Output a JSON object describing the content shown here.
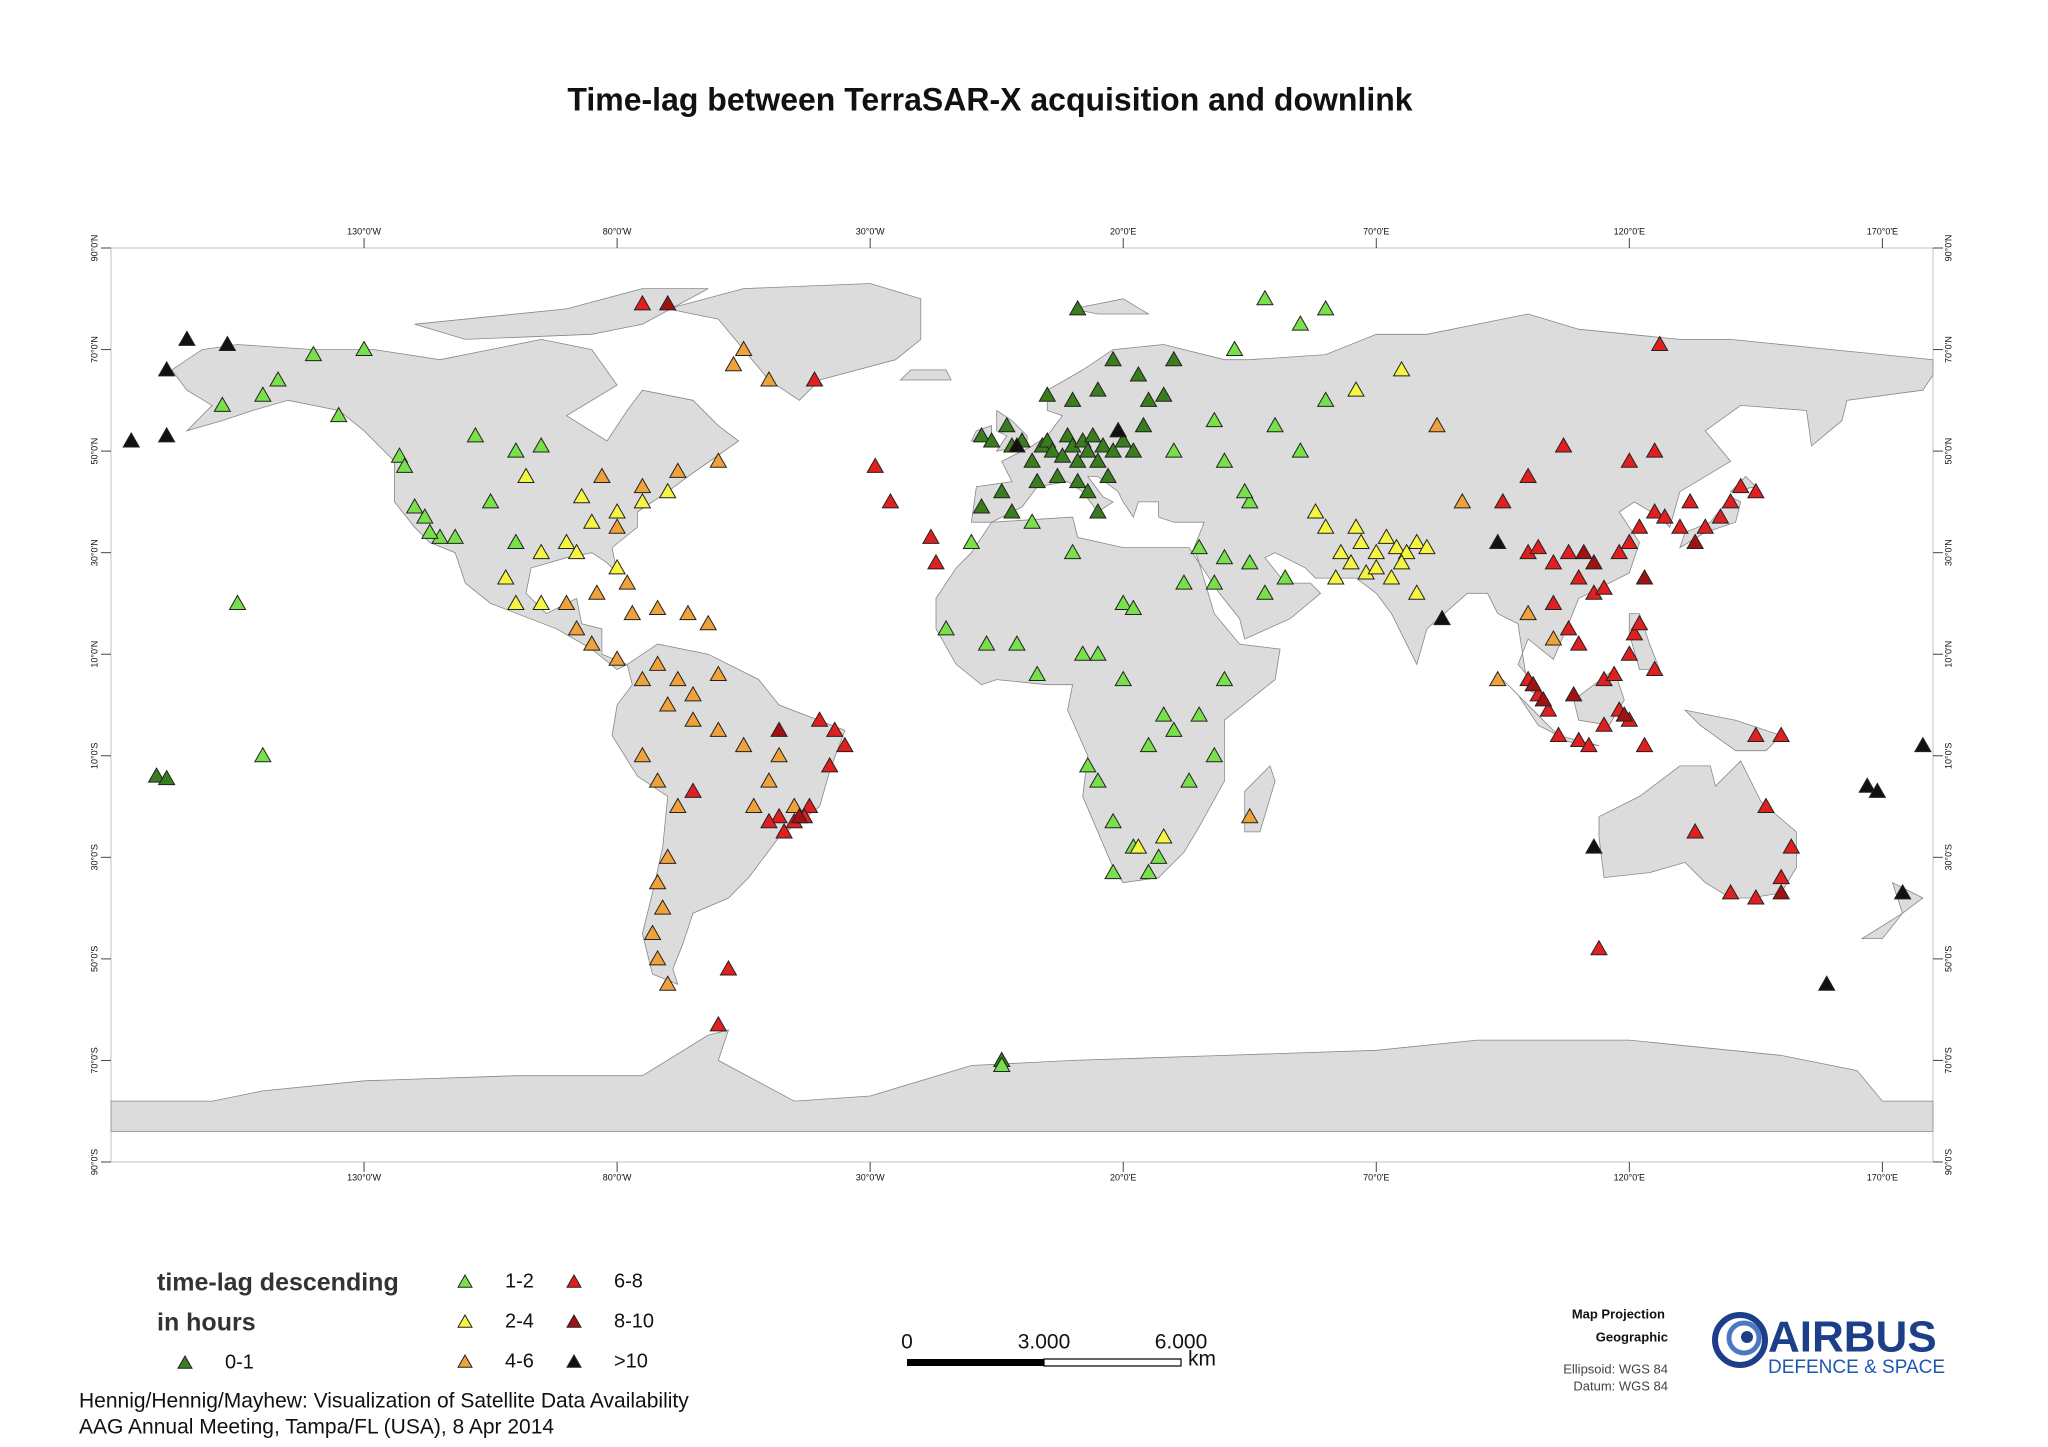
{
  "chart_data": {
    "type": "scatter",
    "title": "Time-lag between TerraSAR-X acquisition and downlink",
    "legend_title": [
      "time-lag descending",
      "in hours"
    ],
    "xlim": [
      -180,
      180
    ],
    "ylim": [
      -90,
      90
    ],
    "xticks": [
      {
        "value": -130,
        "label": "130°0'W"
      },
      {
        "value": -80,
        "label": "80°0'W"
      },
      {
        "value": -30,
        "label": "30°0'W"
      },
      {
        "value": 20,
        "label": "20°0'E"
      },
      {
        "value": 70,
        "label": "70°0'E"
      },
      {
        "value": 120,
        "label": "120°0'E"
      },
      {
        "value": 170,
        "label": "170°0'E"
      }
    ],
    "yticks": [
      {
        "value": 90,
        "label": "90°0'N"
      },
      {
        "value": 70,
        "label": "70°0'N"
      },
      {
        "value": 50,
        "label": "50°0'N"
      },
      {
        "value": 30,
        "label": "30°0'N"
      },
      {
        "value": 10,
        "label": "10°0'N"
      },
      {
        "value": -10,
        "label": "10°0'S"
      },
      {
        "value": -30,
        "label": "30°0'S"
      },
      {
        "value": -50,
        "label": "50°0'S"
      },
      {
        "value": -70,
        "label": "70°0'S"
      },
      {
        "value": -90,
        "label": "90°0'S"
      }
    ],
    "series": [
      {
        "name": "0-1",
        "color": "#3a7d1e",
        "x": [
          -8,
          -6,
          -3,
          -2,
          0,
          2,
          4,
          5,
          6,
          8,
          9,
          10,
          11,
          12,
          13,
          14,
          15,
          16,
          18,
          19,
          20,
          22,
          24,
          -4,
          -8,
          -2,
          3,
          7,
          11,
          13,
          15,
          10,
          5,
          15,
          25,
          18,
          23,
          28,
          11,
          30,
          17,
          -171,
          -169,
          -4
        ],
        "values": [
          53,
          52,
          55,
          51,
          52,
          48,
          51,
          52,
          50,
          49,
          53,
          51,
          48,
          52,
          50,
          53,
          48,
          51,
          50,
          54,
          52,
          50,
          55,
          42,
          39,
          38,
          44,
          45,
          44,
          42,
          38,
          60,
          61,
          62,
          60,
          68,
          65,
          61,
          78,
          68,
          45,
          -14,
          -14.5,
          -70
        ]
      },
      {
        "name": "1-2",
        "color": "#77e04a",
        "x": [
          -150,
          -147,
          -158,
          -135,
          -123,
          -122,
          -118,
          -120,
          -115,
          -117,
          -112,
          -105,
          -100,
          -95,
          -108,
          -130,
          -140,
          -155,
          -150,
          -100,
          -10,
          -15,
          -7,
          -1,
          3,
          10,
          2,
          20,
          22,
          15,
          20,
          32,
          35,
          38,
          40,
          45,
          48,
          52,
          45,
          44,
          40,
          38,
          30,
          50,
          55,
          60,
          42,
          55,
          48,
          60,
          28,
          25,
          30,
          35,
          38,
          18,
          22,
          27,
          15,
          13,
          18,
          25,
          40,
          33,
          12,
          -4
        ],
        "values": [
          61,
          64,
          59,
          57,
          49,
          47,
          37,
          39,
          33,
          34,
          33,
          40,
          50,
          51,
          53,
          70,
          69,
          20,
          -10,
          32,
          32,
          15,
          12,
          12,
          6,
          30,
          36,
          20,
          19,
          10,
          5,
          24,
          31,
          24,
          29,
          28,
          22,
          25,
          40,
          42,
          48,
          56,
          50,
          55,
          50,
          60,
          70,
          75,
          80,
          78,
          -2,
          -8,
          -5,
          -2,
          -10,
          -23,
          -28,
          -30,
          -15,
          -12,
          -33,
          -33,
          5,
          -15,
          10,
          -71
        ]
      },
      {
        "name": "2-4",
        "color": "#f5f542",
        "x": [
          63,
          65,
          67,
          70,
          72,
          74,
          76,
          68,
          70,
          75,
          78,
          73,
          80,
          60,
          66,
          62,
          78,
          66,
          75,
          58,
          -80,
          -85,
          -90,
          -87,
          -95,
          -80,
          -75,
          -70,
          -100,
          -102,
          -95,
          23,
          28,
          -98,
          -88
        ],
        "values": [
          30,
          28,
          32,
          30,
          33,
          31,
          30,
          26,
          27,
          28,
          32,
          25,
          31,
          35,
          35,
          25,
          22,
          62,
          66,
          38,
          38,
          36,
          32,
          41,
          30,
          27,
          40,
          42,
          20,
          25,
          20,
          -28,
          -26,
          45,
          30
        ]
      },
      {
        "name": "4-6",
        "color": "#f0a23a",
        "x": [
          -75,
          -72,
          -68,
          -65,
          -60,
          -70,
          -65,
          -60,
          -55,
          -75,
          -72,
          -68,
          -70,
          -72,
          -71,
          -73,
          -72,
          -70,
          -48,
          -50,
          -45,
          -53,
          -88,
          -85,
          -80,
          -77,
          -72,
          -66,
          -62,
          -84,
          -78,
          -90,
          -80,
          -75,
          -68,
          -60,
          -57,
          -50,
          -55,
          82,
          87,
          100,
          105,
          94,
          45,
          -83
        ],
        "values": [
          5,
          8,
          5,
          2,
          6,
          0,
          -3,
          -5,
          -8,
          -10,
          -15,
          -20,
          -30,
          -35,
          -40,
          -45,
          -50,
          -55,
          -10,
          -15,
          -20,
          -20,
          15,
          12,
          9,
          18,
          19,
          18,
          16,
          22,
          24,
          20,
          35,
          43,
          46,
          48,
          67,
          64,
          70,
          55,
          40,
          18,
          13,
          5,
          -22,
          45
        ]
      },
      {
        "name": "6-8",
        "color": "#e02020",
        "x": [
          100,
          102,
          105,
          108,
          110,
          113,
          115,
          118,
          120,
          122,
          125,
          127,
          130,
          132,
          135,
          138,
          140,
          142,
          145,
          105,
          108,
          110,
          115,
          117,
          120,
          121,
          122,
          125,
          100,
          102,
          104,
          106,
          110,
          112,
          115,
          118,
          120,
          123,
          95,
          100,
          120,
          125,
          107,
          126,
          133,
          145,
          150,
          152,
          147,
          140,
          114,
          145,
          150,
          -17,
          -18,
          -29,
          -26,
          -35,
          -37,
          -40,
          -38,
          -42,
          -45,
          -48,
          -50,
          -43,
          -47,
          -65,
          -58,
          -41,
          -75,
          -60
        ],
        "values": [
          30,
          31,
          28,
          30,
          25,
          22,
          23,
          30,
          32,
          35,
          38,
          37,
          35,
          40,
          35,
          37,
          40,
          43,
          42,
          20,
          15,
          12,
          5,
          6,
          10,
          14,
          16,
          7,
          5,
          2,
          -1,
          -6,
          -7,
          -8,
          -4,
          -1,
          -3,
          -8,
          40,
          45,
          48,
          50,
          51,
          71,
          -25,
          -38,
          -34,
          -28,
          -20,
          -37,
          -48,
          -6,
          -6,
          28,
          33,
          47,
          40,
          -8,
          -5,
          -3,
          -12,
          -20,
          -23,
          -22,
          -23,
          -22,
          -25,
          -17,
          -52,
          64,
          79,
          -63
        ]
      },
      {
        "name": "8-10",
        "color": "#9e1212",
        "x": [
          111,
          113,
          101,
          103,
          -70,
          -48,
          -44,
          150,
          109,
          119,
          133,
          123
        ],
        "values": [
          30,
          28,
          4,
          1,
          79,
          -5,
          -22,
          -37,
          2,
          -2,
          32,
          25
        ]
      },
      {
        "name": ">10",
        "color": "#111111",
        "x": [
          -165,
          -157,
          -169,
          -176,
          -169,
          83,
          113,
          178,
          167,
          169,
          174,
          159,
          19,
          -1,
          94
        ],
        "values": [
          72,
          71,
          66,
          52,
          53,
          17,
          -28,
          -8,
          -16,
          -17,
          -37,
          -55,
          54,
          51,
          32
        ]
      }
    ]
  },
  "scale_bar": {
    "labels": [
      "0",
      "3.000",
      "6.000"
    ],
    "unit": "km"
  },
  "projection": {
    "heading": "Map Projection",
    "name": "Geographic",
    "ellipsoid": "Ellipsoid: WGS 84",
    "datum": "Datum: WGS 84"
  },
  "logo": {
    "name": "AIRBUS",
    "division": "DEFENCE & SPACE"
  },
  "footer": [
    "Hennig/Hennig/Mayhew: Visualization of Satellite Data Availability",
    "AAG Annual Meeting, Tampa/FL (USA), 8 Apr 2014"
  ]
}
